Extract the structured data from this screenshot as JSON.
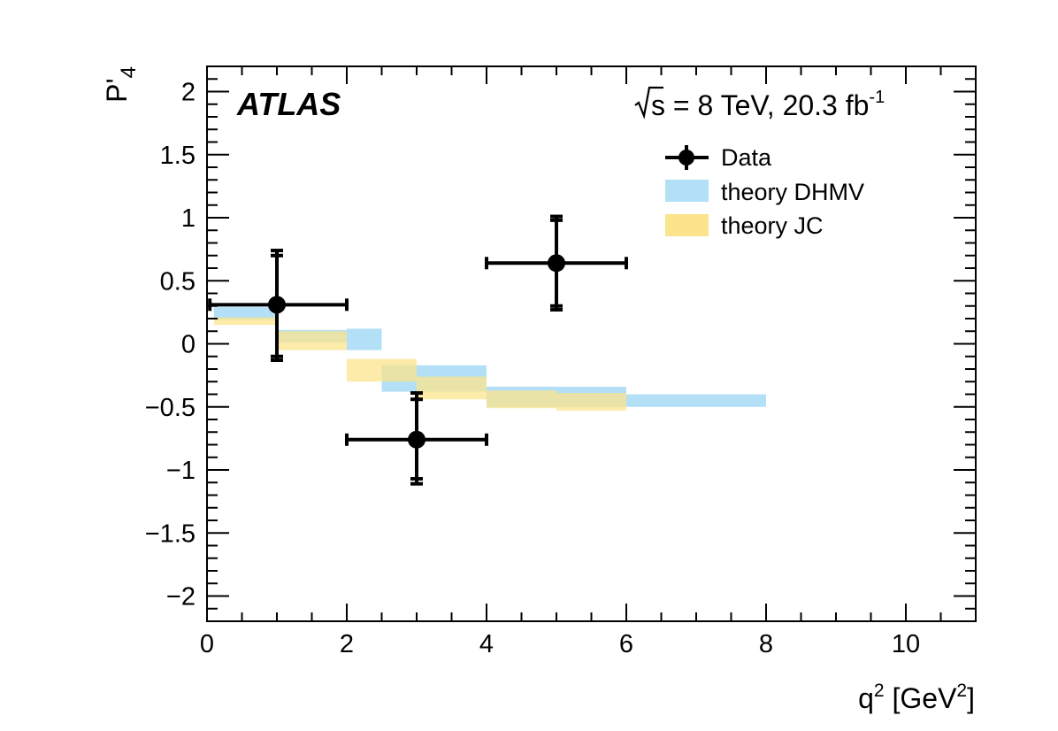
{
  "chart_data": {
    "type": "scatter",
    "experiment_label": "ATLAS",
    "energy_label": {
      "sqrt_s": "s = 8 TeV, 20.3 fb",
      "superscript": "-1"
    },
    "xlabel": {
      "base": "q",
      "sup": "2",
      "mid": " [GeV",
      "sup2": "2",
      "end": "]"
    },
    "ylabel": {
      "base": "P'",
      "sub": "4"
    },
    "xlim": [
      0,
      11
    ],
    "ylim": [
      -2.2,
      2.2
    ],
    "x_ticks": [
      0,
      2,
      4,
      6,
      8,
      10
    ],
    "x_tick_labels": [
      "0",
      "2",
      "4",
      "6",
      "8",
      "10"
    ],
    "y_ticks": [
      -2,
      -1.5,
      -1,
      -0.5,
      0,
      0.5,
      1,
      1.5,
      2
    ],
    "y_tick_labels": [
      "−2",
      "−1.5",
      "−1",
      "−0.5",
      "0",
      "0.5",
      "1",
      "1.5",
      "2"
    ],
    "grid": false,
    "legend": {
      "placement": "top-right",
      "entries": [
        {
          "label": "Data",
          "kind": "marker"
        },
        {
          "label": "theory DHMV",
          "kind": "band",
          "color": "#b3e0f7"
        },
        {
          "label": "theory JC",
          "kind": "band",
          "color": "#fbe48c"
        }
      ]
    },
    "data": [
      {
        "x": 1.0,
        "xlo": 0.04,
        "xhi": 2.0,
        "y": 0.31,
        "y_stat_lo": -0.1,
        "y_stat_hi": 0.7,
        "y_tot_lo": -0.13,
        "y_tot_hi": 0.74
      },
      {
        "x": 3.0,
        "xlo": 2.0,
        "xhi": 4.0,
        "y": -0.76,
        "y_stat_lo": -1.07,
        "y_stat_hi": -0.44,
        "y_tot_lo": -1.11,
        "y_tot_hi": -0.39
      },
      {
        "x": 5.0,
        "xlo": 4.0,
        "xhi": 6.0,
        "y": 0.64,
        "y_stat_lo": 0.3,
        "y_stat_hi": 0.98,
        "y_tot_lo": 0.27,
        "y_tot_hi": 1.01
      }
    ],
    "series": [
      {
        "name": "theory DHMV",
        "color": "#b3e0f7",
        "bands": [
          {
            "x0": 0.1,
            "x1": 1.0,
            "ylo": 0.19,
            "yhi": 0.29
          },
          {
            "x0": 1.0,
            "x1": 2.0,
            "ylo": 0.01,
            "yhi": 0.11
          },
          {
            "x0": 2.0,
            "x1": 2.5,
            "ylo": -0.05,
            "yhi": 0.12
          },
          {
            "x0": 2.5,
            "x1": 4.0,
            "ylo": -0.38,
            "yhi": -0.17
          },
          {
            "x0": 4.0,
            "x1": 6.0,
            "ylo": -0.5,
            "yhi": -0.34
          },
          {
            "x0": 6.0,
            "x1": 8.0,
            "ylo": -0.5,
            "yhi": -0.4
          }
        ]
      },
      {
        "name": "theory JC",
        "color": "#fbe48c",
        "bands": [
          {
            "x0": 0.1,
            "x1": 1.0,
            "ylo": 0.15,
            "yhi": 0.21
          },
          {
            "x0": 1.0,
            "x1": 2.0,
            "ylo": -0.05,
            "yhi": 0.1
          },
          {
            "x0": 2.0,
            "x1": 3.0,
            "ylo": -0.3,
            "yhi": -0.12
          },
          {
            "x0": 3.0,
            "x1": 4.0,
            "ylo": -0.44,
            "yhi": -0.26
          },
          {
            "x0": 4.0,
            "x1": 5.0,
            "ylo": -0.51,
            "yhi": -0.37
          },
          {
            "x0": 5.0,
            "x1": 6.0,
            "ylo": -0.53,
            "yhi": -0.39
          }
        ]
      }
    ]
  }
}
